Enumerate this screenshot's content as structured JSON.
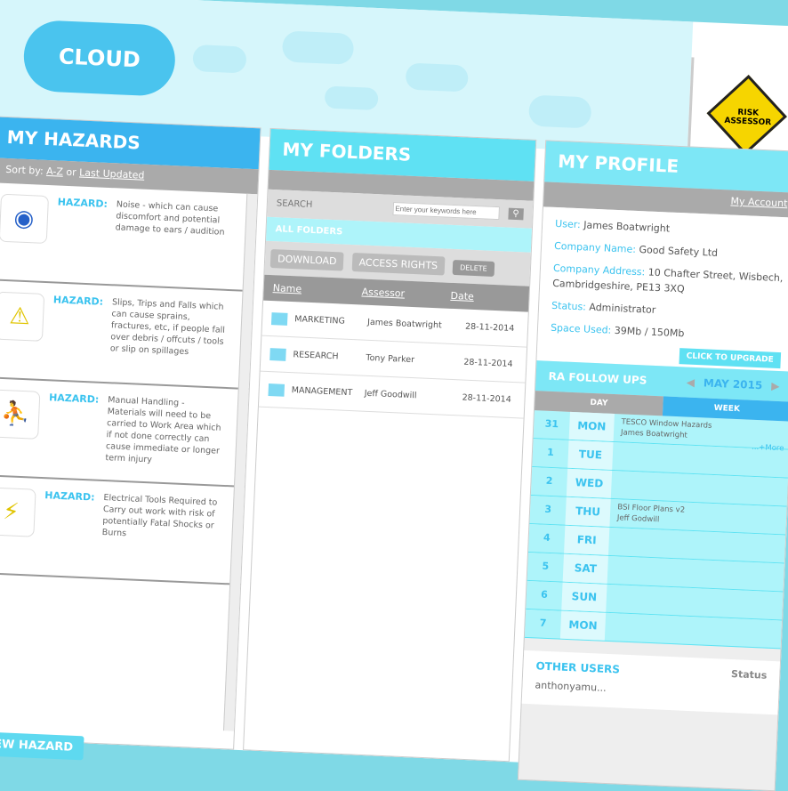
{
  "logo": "CLOUD",
  "badge": "RISK ASSESSOR",
  "hazards": {
    "title": "MY HAZARDS",
    "sort_label": "Sort by:",
    "sort_az": "A-Z",
    "sort_or": "or",
    "sort_updated": "Last Updated",
    "label": "HAZARD:",
    "items": [
      {
        "icon": "ear-protection-icon",
        "glyph": "◉",
        "color": "#2560c8",
        "text": "Noise - which can cause discomfort and potential damage to ears / audition"
      },
      {
        "icon": "slip-trip-warning-icon",
        "glyph": "⚠",
        "color": "#e0c400",
        "text": "Slips, Trips and Falls which can cause sprains, fractures, etc, if people fall over debris / offcuts / tools or slip on spillages"
      },
      {
        "icon": "manual-handling-icon",
        "glyph": "⛹",
        "color": "#2560c8",
        "text": "Manual Handling - Materials will need to be carried to Work Area which if not done correctly can cause immediate or longer term injury"
      },
      {
        "icon": "electrical-warning-icon",
        "glyph": "⚡",
        "color": "#e0c400",
        "text": "Electrical Tools Required to Carry out work with risk of potentially Fatal Shocks or Burns"
      }
    ],
    "add_button": "ADD NEW HAZARD"
  },
  "folders": {
    "title": "MY FOLDERS",
    "search_label": "SEARCH",
    "search_placeholder": "Enter your keywords here",
    "all_folders": "ALL FOLDERS",
    "download": "DOWNLOAD",
    "access_rights": "ACCESS RIGHTS",
    "delete": "DELETE",
    "columns": [
      "Name",
      "Assessor",
      "Date"
    ],
    "rows": [
      [
        "MARKETING",
        "James Boatwright",
        "28-11-2014"
      ],
      [
        "RESEARCH",
        "Tony Parker",
        "28-11-2014"
      ],
      [
        "MANAGEMENT",
        "Jeff Goodwill",
        "28-11-2014"
      ]
    ]
  },
  "profile": {
    "title": "MY PROFILE",
    "my_account": "My Account",
    "fields": [
      {
        "label": "User:",
        "value": "James Boatwright"
      },
      {
        "label": "Company Name:",
        "value": "Good Safety Ltd"
      },
      {
        "label": "Company Address:",
        "value": "10 Chafter Street, Wisbech, Cambridgeshire, PE13 3XQ"
      },
      {
        "label": "Status:",
        "value": "Administrator"
      },
      {
        "label": "Space Used:",
        "value": "39Mb / 150Mb"
      }
    ],
    "upgrade": "CLICK TO UPGRADE"
  },
  "followups": {
    "title": "RA FOLLOW UPS",
    "month": "MAY 2015",
    "tab_day": "DAY",
    "tab_week": "WEEK",
    "more": "...+More",
    "days": [
      {
        "n": "31",
        "d": "MON",
        "e1": "TESCO Window Hazards",
        "e2": "James Boatwright"
      },
      {
        "n": "1",
        "d": "TUE",
        "e1": "",
        "e2": ""
      },
      {
        "n": "2",
        "d": "WED",
        "e1": "",
        "e2": ""
      },
      {
        "n": "3",
        "d": "THU",
        "e1": "BSI Floor Plans v2",
        "e2": "Jeff Godwill"
      },
      {
        "n": "4",
        "d": "FRI",
        "e1": "",
        "e2": ""
      },
      {
        "n": "5",
        "d": "SAT",
        "e1": "",
        "e2": ""
      },
      {
        "n": "6",
        "d": "SUN",
        "e1": "",
        "e2": ""
      },
      {
        "n": "7",
        "d": "MON",
        "e1": "",
        "e2": ""
      }
    ]
  },
  "other_users": {
    "title": "OTHER USERS",
    "status": "Status",
    "first": "anthonyamu..."
  }
}
